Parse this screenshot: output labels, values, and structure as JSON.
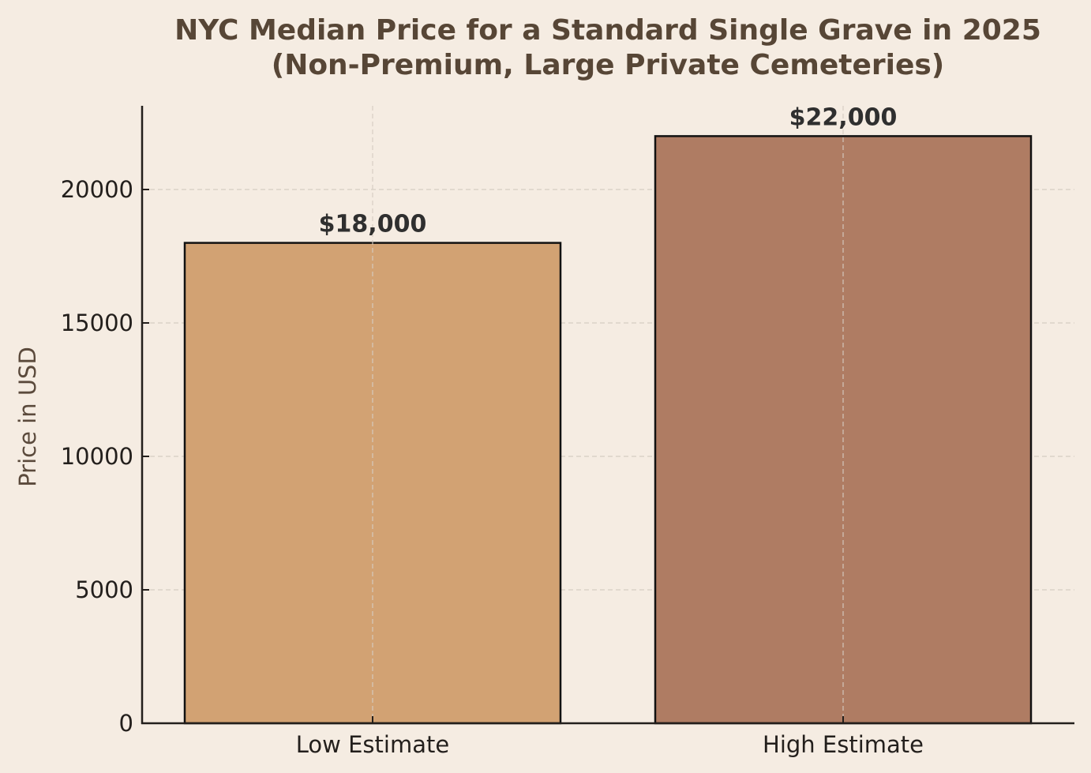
{
  "chart_data": {
    "type": "bar",
    "title": "NYC Median Price for a Standard Single Grave in 2025\n(Non-Premium, Large Private Cemeteries)",
    "title_lines": [
      "NYC Median Price for a Standard Single Grave in 2025",
      "(Non-Premium, Large Private Cemeteries)"
    ],
    "categories": [
      "Low Estimate",
      "High Estimate"
    ],
    "values": [
      18000,
      22000
    ],
    "value_labels": [
      "$18,000",
      "$22,000"
    ],
    "colors": [
      "#d2a273",
      "#af7c63"
    ],
    "xlabel": "",
    "ylabel": "Price in USD",
    "ylim": [
      0,
      23100
    ],
    "yticks": [
      0,
      5000,
      10000,
      15000,
      20000
    ],
    "ytick_labels": [
      "0",
      "5000",
      "10000",
      "15000",
      "20000"
    ],
    "grid": true,
    "grid_style": "dashed",
    "legend": null
  },
  "colors": {
    "background": "#f5ece2",
    "title": "#574636",
    "axis": "#231f1c",
    "grid": "#d5cdc3",
    "bar_edge": "#111111",
    "value_label": "#2f2f2f"
  }
}
